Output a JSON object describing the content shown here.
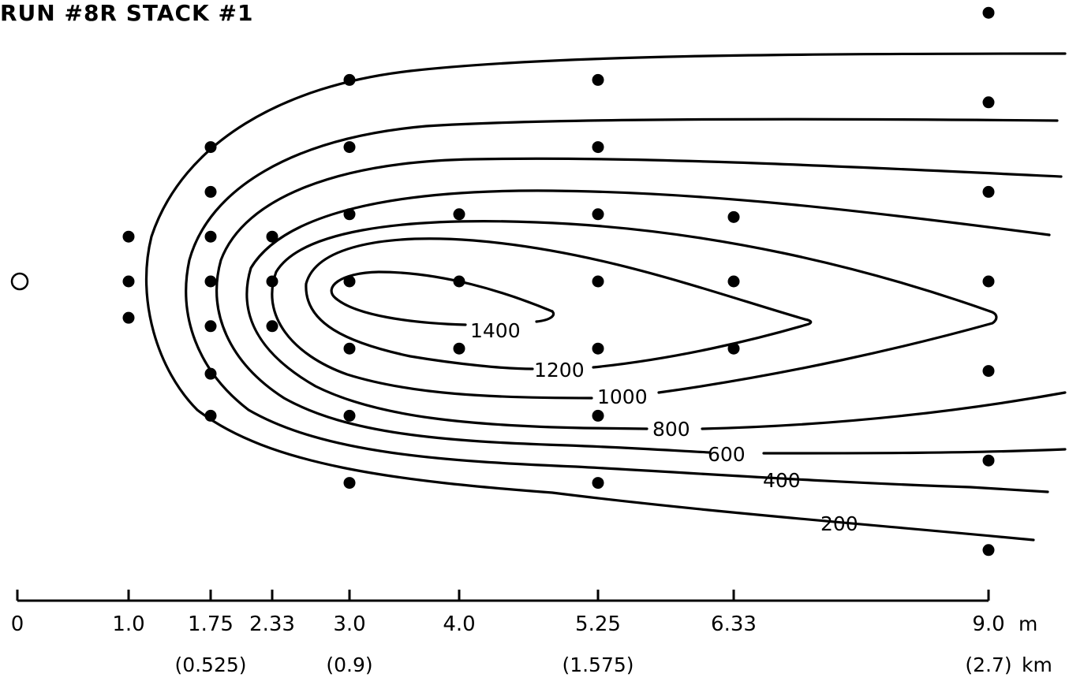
{
  "chart_data": {
    "type": "contour",
    "title": "RUN #8R STACK #1",
    "source_marker": {
      "x": 0,
      "y": 0
    },
    "x_axis": {
      "ticks": [
        {
          "value": 0,
          "label": "0"
        },
        {
          "value": 1.0,
          "label": "1.0"
        },
        {
          "value": 1.75,
          "label": "1.75",
          "km_label": "(0.525)"
        },
        {
          "value": 2.33,
          "label": "2.33"
        },
        {
          "value": 3.0,
          "label": "3.0",
          "km_label": "(0.9)"
        },
        {
          "value": 4.0,
          "label": "4.0"
        },
        {
          "value": 5.25,
          "label": "5.25",
          "km_label": "(1.575)"
        },
        {
          "value": 6.33,
          "label": "6.33"
        },
        {
          "value": 9.0,
          "label": "9.0",
          "km_label": "(2.7)"
        }
      ],
      "unit": "m",
      "km_unit": "km"
    },
    "contour_levels": [
      "1400",
      "1200",
      "1000",
      "800",
      "600",
      "400",
      "200"
    ],
    "sample_points": [
      {
        "x": 1.0,
        "y": 0.8
      },
      {
        "x": 1.0,
        "y": 0.0
      },
      {
        "x": 1.0,
        "y": -0.65
      },
      {
        "x": 1.75,
        "y": 2.4
      },
      {
        "x": 1.75,
        "y": 1.6
      },
      {
        "x": 1.75,
        "y": 0.8
      },
      {
        "x": 1.75,
        "y": 0.0
      },
      {
        "x": 1.75,
        "y": -0.8
      },
      {
        "x": 1.75,
        "y": -1.65
      },
      {
        "x": 1.75,
        "y": -2.4
      },
      {
        "x": 2.33,
        "y": 0.8
      },
      {
        "x": 2.33,
        "y": 0.0
      },
      {
        "x": 2.33,
        "y": -0.8
      },
      {
        "x": 3.0,
        "y": 3.6
      },
      {
        "x": 3.0,
        "y": 2.4
      },
      {
        "x": 3.0,
        "y": 1.2
      },
      {
        "x": 3.0,
        "y": 0.0
      },
      {
        "x": 3.0,
        "y": -1.2
      },
      {
        "x": 3.0,
        "y": -2.4
      },
      {
        "x": 3.0,
        "y": -3.6
      },
      {
        "x": 4.0,
        "y": 1.2
      },
      {
        "x": 4.0,
        "y": 0.0
      },
      {
        "x": 4.0,
        "y": -1.2
      },
      {
        "x": 5.25,
        "y": 3.6
      },
      {
        "x": 5.25,
        "y": 2.4
      },
      {
        "x": 5.25,
        "y": 1.2
      },
      {
        "x": 5.25,
        "y": 0.0
      },
      {
        "x": 5.25,
        "y": -1.2
      },
      {
        "x": 5.25,
        "y": -2.4
      },
      {
        "x": 5.25,
        "y": -3.6
      },
      {
        "x": 6.33,
        "y": 1.15
      },
      {
        "x": 6.33,
        "y": 0.0
      },
      {
        "x": 6.33,
        "y": -1.2
      },
      {
        "x": 9.0,
        "y": 4.8
      },
      {
        "x": 9.0,
        "y": 3.2
      },
      {
        "x": 9.0,
        "y": 1.6
      },
      {
        "x": 9.0,
        "y": 0.0
      },
      {
        "x": 9.0,
        "y": -1.6
      },
      {
        "x": 9.0,
        "y": -3.2
      },
      {
        "x": 9.0,
        "y": -4.8
      }
    ]
  }
}
